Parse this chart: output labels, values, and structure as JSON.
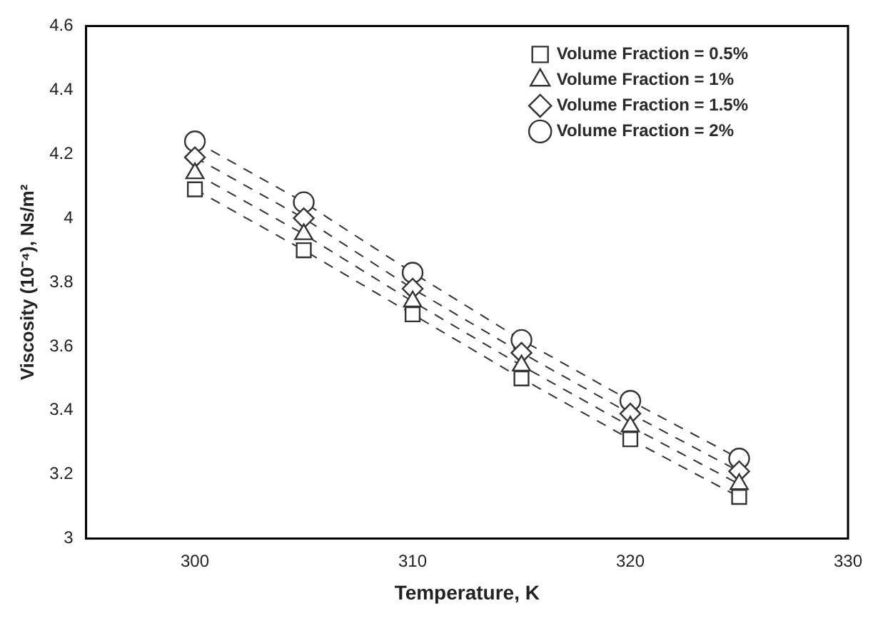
{
  "chart_data": {
    "type": "line",
    "xlabel": "Temperature, K",
    "ylabel": "Viscosity (10⁻⁴), Ns/m²",
    "x": [
      300,
      305,
      310,
      315,
      320,
      325
    ],
    "series": [
      {
        "name": "Volume Fraction = 0.5%",
        "color": "#333333",
        "marker": "square",
        "values": [
          4.09,
          3.9,
          3.7,
          3.5,
          3.31,
          3.13
        ]
      },
      {
        "name": "Volume Fraction = 1%",
        "color": "#333333",
        "marker": "triangle",
        "values": [
          4.14,
          3.95,
          3.74,
          3.54,
          3.35,
          3.17
        ]
      },
      {
        "name": "Volume Fraction = 1.5%",
        "color": "#333333",
        "marker": "diamond",
        "values": [
          4.19,
          4.0,
          3.78,
          3.58,
          3.39,
          3.21
        ]
      },
      {
        "name": "Volume Fraction = 2%",
        "color": "#333333",
        "marker": "circle",
        "values": [
          4.24,
          4.05,
          3.83,
          3.62,
          3.43,
          3.25
        ]
      }
    ],
    "xlim": [
      295,
      330
    ],
    "xticks": [
      300,
      310,
      320,
      330
    ],
    "ylim": [
      3,
      4.6
    ],
    "yticks": [
      3,
      3.2,
      3.4,
      3.6,
      3.8,
      4,
      4.2,
      4.4,
      4.6
    ],
    "grid": false,
    "legend": "top right",
    "line_style": "dashed"
  }
}
